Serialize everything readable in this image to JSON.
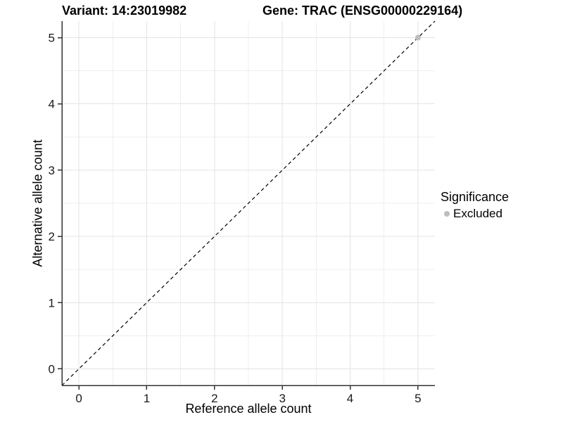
{
  "chart_data": {
    "type": "scatter",
    "titles": {
      "left": "Variant: 14:23019982",
      "right": "Gene: TRAC (ENSG00000229164)"
    },
    "xlabel": "Reference allele count",
    "ylabel": "Alternative allele count",
    "xlim": [
      -0.25,
      5.25
    ],
    "ylim": [
      -0.25,
      5.25
    ],
    "x_ticks": [
      0,
      1,
      2,
      3,
      4,
      5
    ],
    "y_ticks": [
      0,
      1,
      2,
      3,
      4,
      5
    ],
    "x_minor": [
      0.5,
      1.5,
      2.5,
      3.5,
      4.5
    ],
    "y_minor": [
      0.5,
      1.5,
      2.5,
      3.5,
      4.5
    ],
    "grid": "major+minor",
    "reference_line": {
      "kind": "abline",
      "slope": 1,
      "intercept": 0,
      "linetype": "dashed",
      "color": "#000000"
    },
    "series": [
      {
        "name": "Excluded",
        "color": "#bebebe",
        "points": [
          {
            "x": 5,
            "y": 5
          }
        ]
      }
    ],
    "legend": {
      "title": "Significance",
      "position": "right",
      "items": [
        {
          "label": "Excluded",
          "color": "#bebebe",
          "marker": "circle"
        }
      ]
    },
    "colors": {
      "background": "#ffffff",
      "grid_major": "#e3e3e3",
      "grid_minor": "#efefef",
      "axis_line": "#333333",
      "tick_mark": "#333333",
      "tick_label": "#1a1a1a"
    }
  }
}
